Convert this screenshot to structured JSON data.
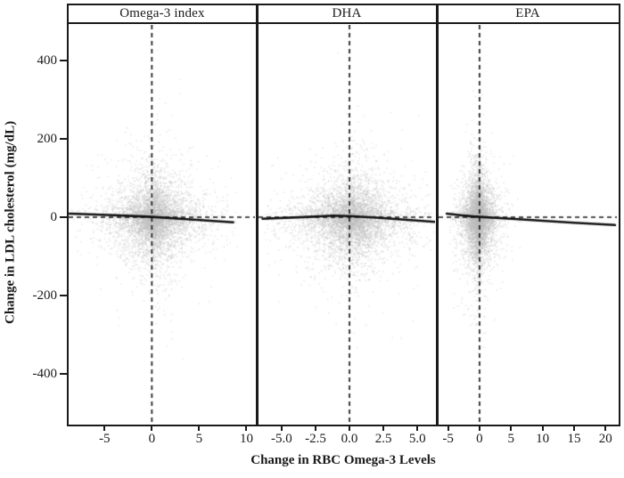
{
  "colors": {
    "background": "#ffffff",
    "frame": "#1a1a1a",
    "scatter_points": "#bcbcbc",
    "trend_line": "#111111",
    "dashed_reference": "#1a1a1a",
    "text": "#1a1a1a"
  },
  "chart_data": {
    "type": "scatter",
    "title": "",
    "xlabel": "Change in RBC Omega-3 Levels",
    "ylabel": "Change in LDL cholesterol (mg/dL)",
    "ylim": [
      -525,
      491
    ],
    "y_ticks": [
      {
        "v": 400,
        "label": "400"
      },
      {
        "v": 200,
        "label": "200"
      },
      {
        "v": 0,
        "label": "0"
      },
      {
        "v": -200,
        "label": "-200"
      },
      {
        "v": -400,
        "label": "-400"
      }
    ],
    "grid": false,
    "legend": "none",
    "panels": [
      {
        "label": "Omega-3 index",
        "xlim": [
          -8.8,
          10.9
        ],
        "x_ticks": [
          {
            "v": -5,
            "label": "-5"
          },
          {
            "v": 0,
            "label": "0"
          },
          {
            "v": 5,
            "label": "5"
          },
          {
            "v": 10,
            "label": "10"
          }
        ],
        "reference_lines": {
          "horizontal_y": 0,
          "vertical_x": 0
        },
        "trend_line": [
          [
            -8.7,
            9
          ],
          [
            -4,
            5
          ],
          [
            -1,
            2
          ],
          [
            0,
            1
          ],
          [
            3,
            -4
          ],
          [
            8.6,
            -13
          ]
        ],
        "point_cloud": {
          "n": 5600,
          "seed": 42,
          "x_center": 0.2,
          "x_spread_laplace": 1.75,
          "x_range": [
            -8.6,
            9.0
          ],
          "y_center": -2,
          "y_spread_laplace": 40,
          "y_range": [
            -455,
            465
          ]
        }
      },
      {
        "label": "DHA",
        "xlim": [
          -6.7,
          6.3
        ],
        "x_ticks": [
          {
            "v": -5,
            "label": "-5.0"
          },
          {
            "v": -2.5,
            "label": "-2.5"
          },
          {
            "v": 0,
            "label": "0.0"
          },
          {
            "v": 2.5,
            "label": "2.5"
          },
          {
            "v": 5,
            "label": "5.0"
          }
        ],
        "reference_lines": {
          "horizontal_y": 0,
          "vertical_x": 0
        },
        "trend_line": [
          [
            -6.4,
            -4
          ],
          [
            -3,
            1
          ],
          [
            -1.2,
            4
          ],
          [
            0,
            3
          ],
          [
            2,
            -1
          ],
          [
            6.3,
            -12
          ]
        ],
        "point_cloud": {
          "n": 5600,
          "seed": 1337,
          "x_center": 0.2,
          "x_spread_laplace": 1.55,
          "x_range": [
            -6.3,
            6.2
          ],
          "y_center": -2,
          "y_spread_laplace": 40,
          "y_range": [
            -455,
            465
          ]
        }
      },
      {
        "label": "EPA",
        "xlim": [
          -6.5,
          21.8
        ],
        "x_ticks": [
          {
            "v": -5,
            "label": "-5"
          },
          {
            "v": 0,
            "label": "0"
          },
          {
            "v": 5,
            "label": "5"
          },
          {
            "v": 10,
            "label": "10"
          },
          {
            "v": 15,
            "label": "15"
          },
          {
            "v": 20,
            "label": "20"
          }
        ],
        "reference_lines": {
          "horizontal_y": 0,
          "vertical_x": 0
        },
        "trend_line": [
          [
            -5.2,
            9
          ],
          [
            -3,
            5
          ],
          [
            -1,
            2
          ],
          [
            0,
            1
          ],
          [
            5,
            -4
          ],
          [
            10,
            -9
          ],
          [
            15,
            -14
          ],
          [
            21.5,
            -20
          ]
        ],
        "point_cloud": {
          "n": 5600,
          "seed": 7,
          "x_center": -0.3,
          "x_spread_laplace": 0.95,
          "x_range": [
            -4.9,
            7.5
          ],
          "y_center": -2,
          "y_spread_laplace": 44,
          "y_range": [
            -435,
            445
          ]
        }
      }
    ]
  }
}
